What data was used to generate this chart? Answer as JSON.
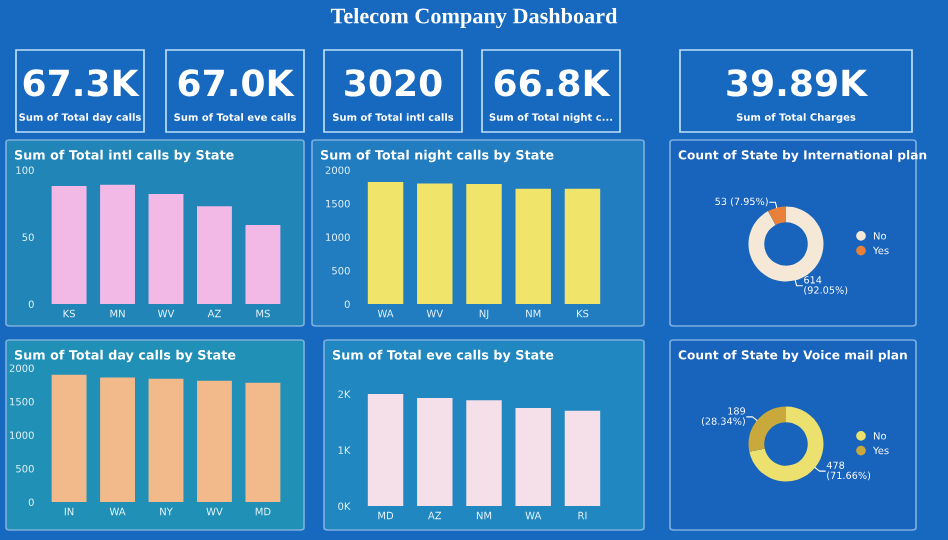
{
  "chart_data": [
    {
      "type": "other",
      "title": "Telecom Company Dashboard",
      "annotations": [
        "67.3K",
        "Sum of Total day calls",
        "67.0K",
        "Sum of Total eve calls",
        "3020",
        "Sum of Total intl calls",
        "66.8K",
        "Sum of Total night c...",
        "39.89K",
        "Sum of Total Charges"
      ]
    },
    {
      "type": "bar",
      "title": "Sum of Total intl calls by State",
      "categories": [
        "KS",
        "MN",
        "WV",
        "AZ",
        "MS"
      ],
      "values": [
        88,
        89,
        82,
        73,
        59
      ],
      "color": "#f2b8e6",
      "ylim": [
        0,
        100
      ],
      "yticks": [
        0,
        50,
        100
      ]
    },
    {
      "type": "bar",
      "title": "Sum of Total night calls by State",
      "categories": [
        "WA",
        "WV",
        "NJ",
        "NM",
        "KS"
      ],
      "values": [
        1820,
        1800,
        1790,
        1720,
        1720
      ],
      "color": "#f0e46a",
      "ylim": [
        0,
        2000
      ],
      "yticks": [
        0,
        500,
        1000,
        1500,
        2000
      ]
    },
    {
      "type": "donut",
      "title": "Count of State by International plan",
      "categories": [
        "No",
        "Yes"
      ],
      "values": [
        614,
        53
      ],
      "colors": [
        "#f6e8d6",
        "#e8803a"
      ],
      "value_labels": [
        "614\n(92.05%)",
        "53 (7.95%)"
      ],
      "legend": "right"
    },
    {
      "type": "bar",
      "title": "Sum of Total day calls by State",
      "categories": [
        "IN",
        "WA",
        "NY",
        "WV",
        "MD"
      ],
      "values": [
        1900,
        1860,
        1840,
        1810,
        1780
      ],
      "color": "#f2b98a",
      "ylim": [
        0,
        2000
      ],
      "yticks": [
        0,
        500,
        1000,
        1500,
        2000
      ]
    },
    {
      "type": "bar",
      "title": "Sum of Total eve calls by State",
      "categories": [
        "MD",
        "AZ",
        "NM",
        "WA",
        "RI"
      ],
      "values": [
        2.0,
        1.93,
        1.89,
        1.75,
        1.7
      ],
      "color": "#f5dfe8",
      "ylim": [
        0,
        2
      ],
      "yticks": [
        {
          "value": 0,
          "label": "0K"
        },
        {
          "value": 1,
          "label": "1K"
        },
        {
          "value": 2,
          "label": "2K"
        }
      ]
    },
    {
      "type": "donut",
      "title": "Count of State by Voice mail plan",
      "categories": [
        "No",
        "Yes"
      ],
      "values": [
        478,
        189
      ],
      "colors": [
        "#ece06e",
        "#c9a93c"
      ],
      "value_labels": [
        "478\n(71.66%)",
        "189\n(28.34%)"
      ],
      "legend": "right"
    }
  ]
}
